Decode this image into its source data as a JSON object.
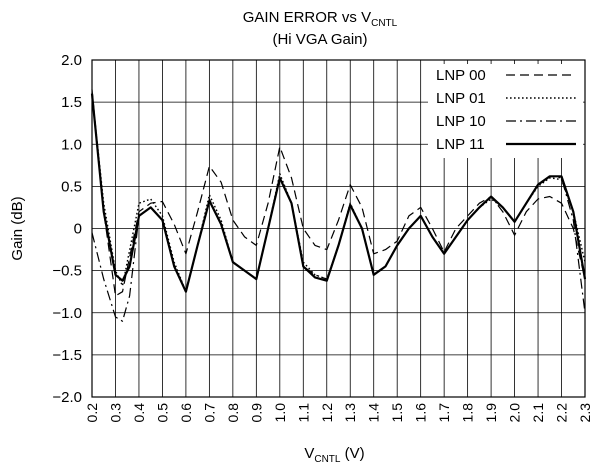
{
  "chart_data": {
    "type": "line",
    "title": {
      "main": "GAIN ERROR vs V",
      "main_sub": "CNTL",
      "line2": "(Hi VGA Gain)"
    },
    "xlabel": {
      "main": "V",
      "sub": "CNTL",
      "suffix": " (V)"
    },
    "ylabel": "Gain (dB)",
    "xlim": [
      0.2,
      2.3
    ],
    "ylim": [
      -2.0,
      2.0
    ],
    "xticks": [
      "0.2",
      "0.3",
      "0.4",
      "0.5",
      "0.6",
      "0.7",
      "0.8",
      "0.9",
      "1.0",
      "1.1",
      "1.2",
      "1.3",
      "1.4",
      "1.5",
      "1.6",
      "1.7",
      "1.8",
      "1.9",
      "2.0",
      "2.1",
      "2.2",
      "2.3"
    ],
    "yticks": [
      "2.0",
      "1.5",
      "1.0",
      "0.5",
      "0",
      "−0.5",
      "−1.0",
      "−1.5",
      "−2.0"
    ],
    "grid": true,
    "legend_position": "top-right",
    "series": [
      {
        "name": "LNP 00",
        "style": "dashed",
        "points": [
          [
            0.2,
            1.65
          ],
          [
            0.25,
            0.2
          ],
          [
            0.3,
            -0.8
          ],
          [
            0.33,
            -0.75
          ],
          [
            0.4,
            0.2
          ],
          [
            0.45,
            0.3
          ],
          [
            0.5,
            0.32
          ],
          [
            0.55,
            0.05
          ],
          [
            0.6,
            -0.3
          ],
          [
            0.65,
            0.2
          ],
          [
            0.7,
            0.74
          ],
          [
            0.75,
            0.55
          ],
          [
            0.8,
            0.1
          ],
          [
            0.85,
            -0.1
          ],
          [
            0.9,
            -0.2
          ],
          [
            0.95,
            0.3
          ],
          [
            1.0,
            0.97
          ],
          [
            1.05,
            0.6
          ],
          [
            1.1,
            0.0
          ],
          [
            1.15,
            -0.2
          ],
          [
            1.2,
            -0.25
          ],
          [
            1.25,
            0.1
          ],
          [
            1.3,
            0.52
          ],
          [
            1.35,
            0.25
          ],
          [
            1.4,
            -0.3
          ],
          [
            1.45,
            -0.25
          ],
          [
            1.5,
            -0.15
          ],
          [
            1.55,
            0.15
          ],
          [
            1.6,
            0.25
          ],
          [
            1.65,
            0.0
          ],
          [
            1.7,
            -0.28
          ],
          [
            1.75,
            0.0
          ],
          [
            1.8,
            0.15
          ],
          [
            1.85,
            0.3
          ],
          [
            1.9,
            0.38
          ],
          [
            1.95,
            0.2
          ],
          [
            2.0,
            -0.08
          ],
          [
            2.05,
            0.2
          ],
          [
            2.1,
            0.35
          ],
          [
            2.15,
            0.38
          ],
          [
            2.2,
            0.3
          ],
          [
            2.25,
            0.0
          ],
          [
            2.3,
            -0.6
          ]
        ]
      },
      {
        "name": "LNP 01",
        "style": "dotted",
        "points": [
          [
            0.2,
            1.6
          ],
          [
            0.25,
            0.3
          ],
          [
            0.3,
            -0.5
          ],
          [
            0.33,
            -0.68
          ],
          [
            0.4,
            0.3
          ],
          [
            0.45,
            0.35
          ],
          [
            0.5,
            0.15
          ],
          [
            0.55,
            -0.4
          ],
          [
            0.6,
            -0.75
          ],
          [
            0.65,
            -0.2
          ],
          [
            0.7,
            0.4
          ],
          [
            0.75,
            0.1
          ],
          [
            0.8,
            -0.4
          ],
          [
            0.85,
            -0.5
          ],
          [
            0.9,
            -0.6
          ],
          [
            0.95,
            0.0
          ],
          [
            1.0,
            0.65
          ],
          [
            1.05,
            0.3
          ],
          [
            1.1,
            -0.4
          ],
          [
            1.15,
            -0.55
          ],
          [
            1.2,
            -0.6
          ],
          [
            1.25,
            -0.2
          ],
          [
            1.3,
            0.3
          ],
          [
            1.35,
            0.0
          ],
          [
            1.4,
            -0.55
          ],
          [
            1.45,
            -0.45
          ],
          [
            1.5,
            -0.2
          ],
          [
            1.55,
            0.0
          ],
          [
            1.6,
            0.15
          ],
          [
            1.65,
            -0.1
          ],
          [
            1.7,
            -0.3
          ],
          [
            1.75,
            -0.1
          ],
          [
            1.8,
            0.1
          ],
          [
            1.85,
            0.25
          ],
          [
            1.9,
            0.35
          ],
          [
            1.95,
            0.25
          ],
          [
            2.0,
            0.08
          ],
          [
            2.05,
            0.3
          ],
          [
            2.1,
            0.5
          ],
          [
            2.15,
            0.6
          ],
          [
            2.2,
            0.58
          ],
          [
            2.25,
            0.2
          ],
          [
            2.3,
            -0.4
          ]
        ]
      },
      {
        "name": "LNP 10",
        "style": "dashdot",
        "points": [
          [
            0.2,
            -0.05
          ],
          [
            0.25,
            -0.6
          ],
          [
            0.3,
            -1.05
          ],
          [
            0.33,
            -1.1
          ],
          [
            0.36,
            -0.8
          ],
          [
            0.4,
            0.15
          ],
          [
            0.45,
            0.25
          ],
          [
            0.5,
            0.1
          ],
          [
            0.55,
            -0.45
          ],
          [
            0.6,
            -0.75
          ],
          [
            0.65,
            -0.2
          ],
          [
            0.7,
            0.35
          ],
          [
            0.75,
            0.05
          ],
          [
            0.8,
            -0.4
          ],
          [
            0.85,
            -0.5
          ],
          [
            0.9,
            -0.6
          ],
          [
            0.95,
            0.0
          ],
          [
            1.0,
            0.6
          ],
          [
            1.05,
            0.3
          ],
          [
            1.1,
            -0.45
          ],
          [
            1.15,
            -0.55
          ],
          [
            1.2,
            -0.6
          ],
          [
            1.25,
            -0.2
          ],
          [
            1.3,
            0.28
          ],
          [
            1.35,
            0.0
          ],
          [
            1.4,
            -0.55
          ],
          [
            1.45,
            -0.45
          ],
          [
            1.5,
            -0.2
          ],
          [
            1.55,
            0.0
          ],
          [
            1.6,
            0.15
          ],
          [
            1.65,
            -0.1
          ],
          [
            1.7,
            -0.3
          ],
          [
            1.75,
            -0.1
          ],
          [
            1.8,
            0.1
          ],
          [
            1.85,
            0.25
          ],
          [
            1.9,
            0.38
          ],
          [
            1.95,
            0.25
          ],
          [
            2.0,
            0.08
          ],
          [
            2.05,
            0.3
          ],
          [
            2.1,
            0.52
          ],
          [
            2.15,
            0.62
          ],
          [
            2.2,
            0.6
          ],
          [
            2.25,
            0.1
          ],
          [
            2.3,
            -1.0
          ]
        ]
      },
      {
        "name": "LNP 11",
        "style": "solid",
        "points": [
          [
            0.2,
            1.6
          ],
          [
            0.25,
            0.2
          ],
          [
            0.3,
            -0.55
          ],
          [
            0.33,
            -0.62
          ],
          [
            0.36,
            -0.45
          ],
          [
            0.4,
            0.15
          ],
          [
            0.45,
            0.25
          ],
          [
            0.5,
            0.1
          ],
          [
            0.55,
            -0.45
          ],
          [
            0.6,
            -0.75
          ],
          [
            0.65,
            -0.2
          ],
          [
            0.7,
            0.33
          ],
          [
            0.75,
            0.05
          ],
          [
            0.8,
            -0.4
          ],
          [
            0.85,
            -0.5
          ],
          [
            0.9,
            -0.6
          ],
          [
            0.95,
            0.0
          ],
          [
            1.0,
            0.6
          ],
          [
            1.05,
            0.3
          ],
          [
            1.1,
            -0.45
          ],
          [
            1.15,
            -0.58
          ],
          [
            1.2,
            -0.62
          ],
          [
            1.25,
            -0.2
          ],
          [
            1.3,
            0.28
          ],
          [
            1.35,
            0.0
          ],
          [
            1.4,
            -0.55
          ],
          [
            1.45,
            -0.45
          ],
          [
            1.5,
            -0.2
          ],
          [
            1.55,
            0.0
          ],
          [
            1.6,
            0.15
          ],
          [
            1.65,
            -0.1
          ],
          [
            1.7,
            -0.3
          ],
          [
            1.75,
            -0.1
          ],
          [
            1.8,
            0.1
          ],
          [
            1.85,
            0.25
          ],
          [
            1.9,
            0.38
          ],
          [
            1.95,
            0.25
          ],
          [
            2.0,
            0.08
          ],
          [
            2.05,
            0.3
          ],
          [
            2.1,
            0.52
          ],
          [
            2.15,
            0.62
          ],
          [
            2.2,
            0.62
          ],
          [
            2.25,
            0.2
          ],
          [
            2.3,
            -0.6
          ]
        ]
      }
    ]
  }
}
